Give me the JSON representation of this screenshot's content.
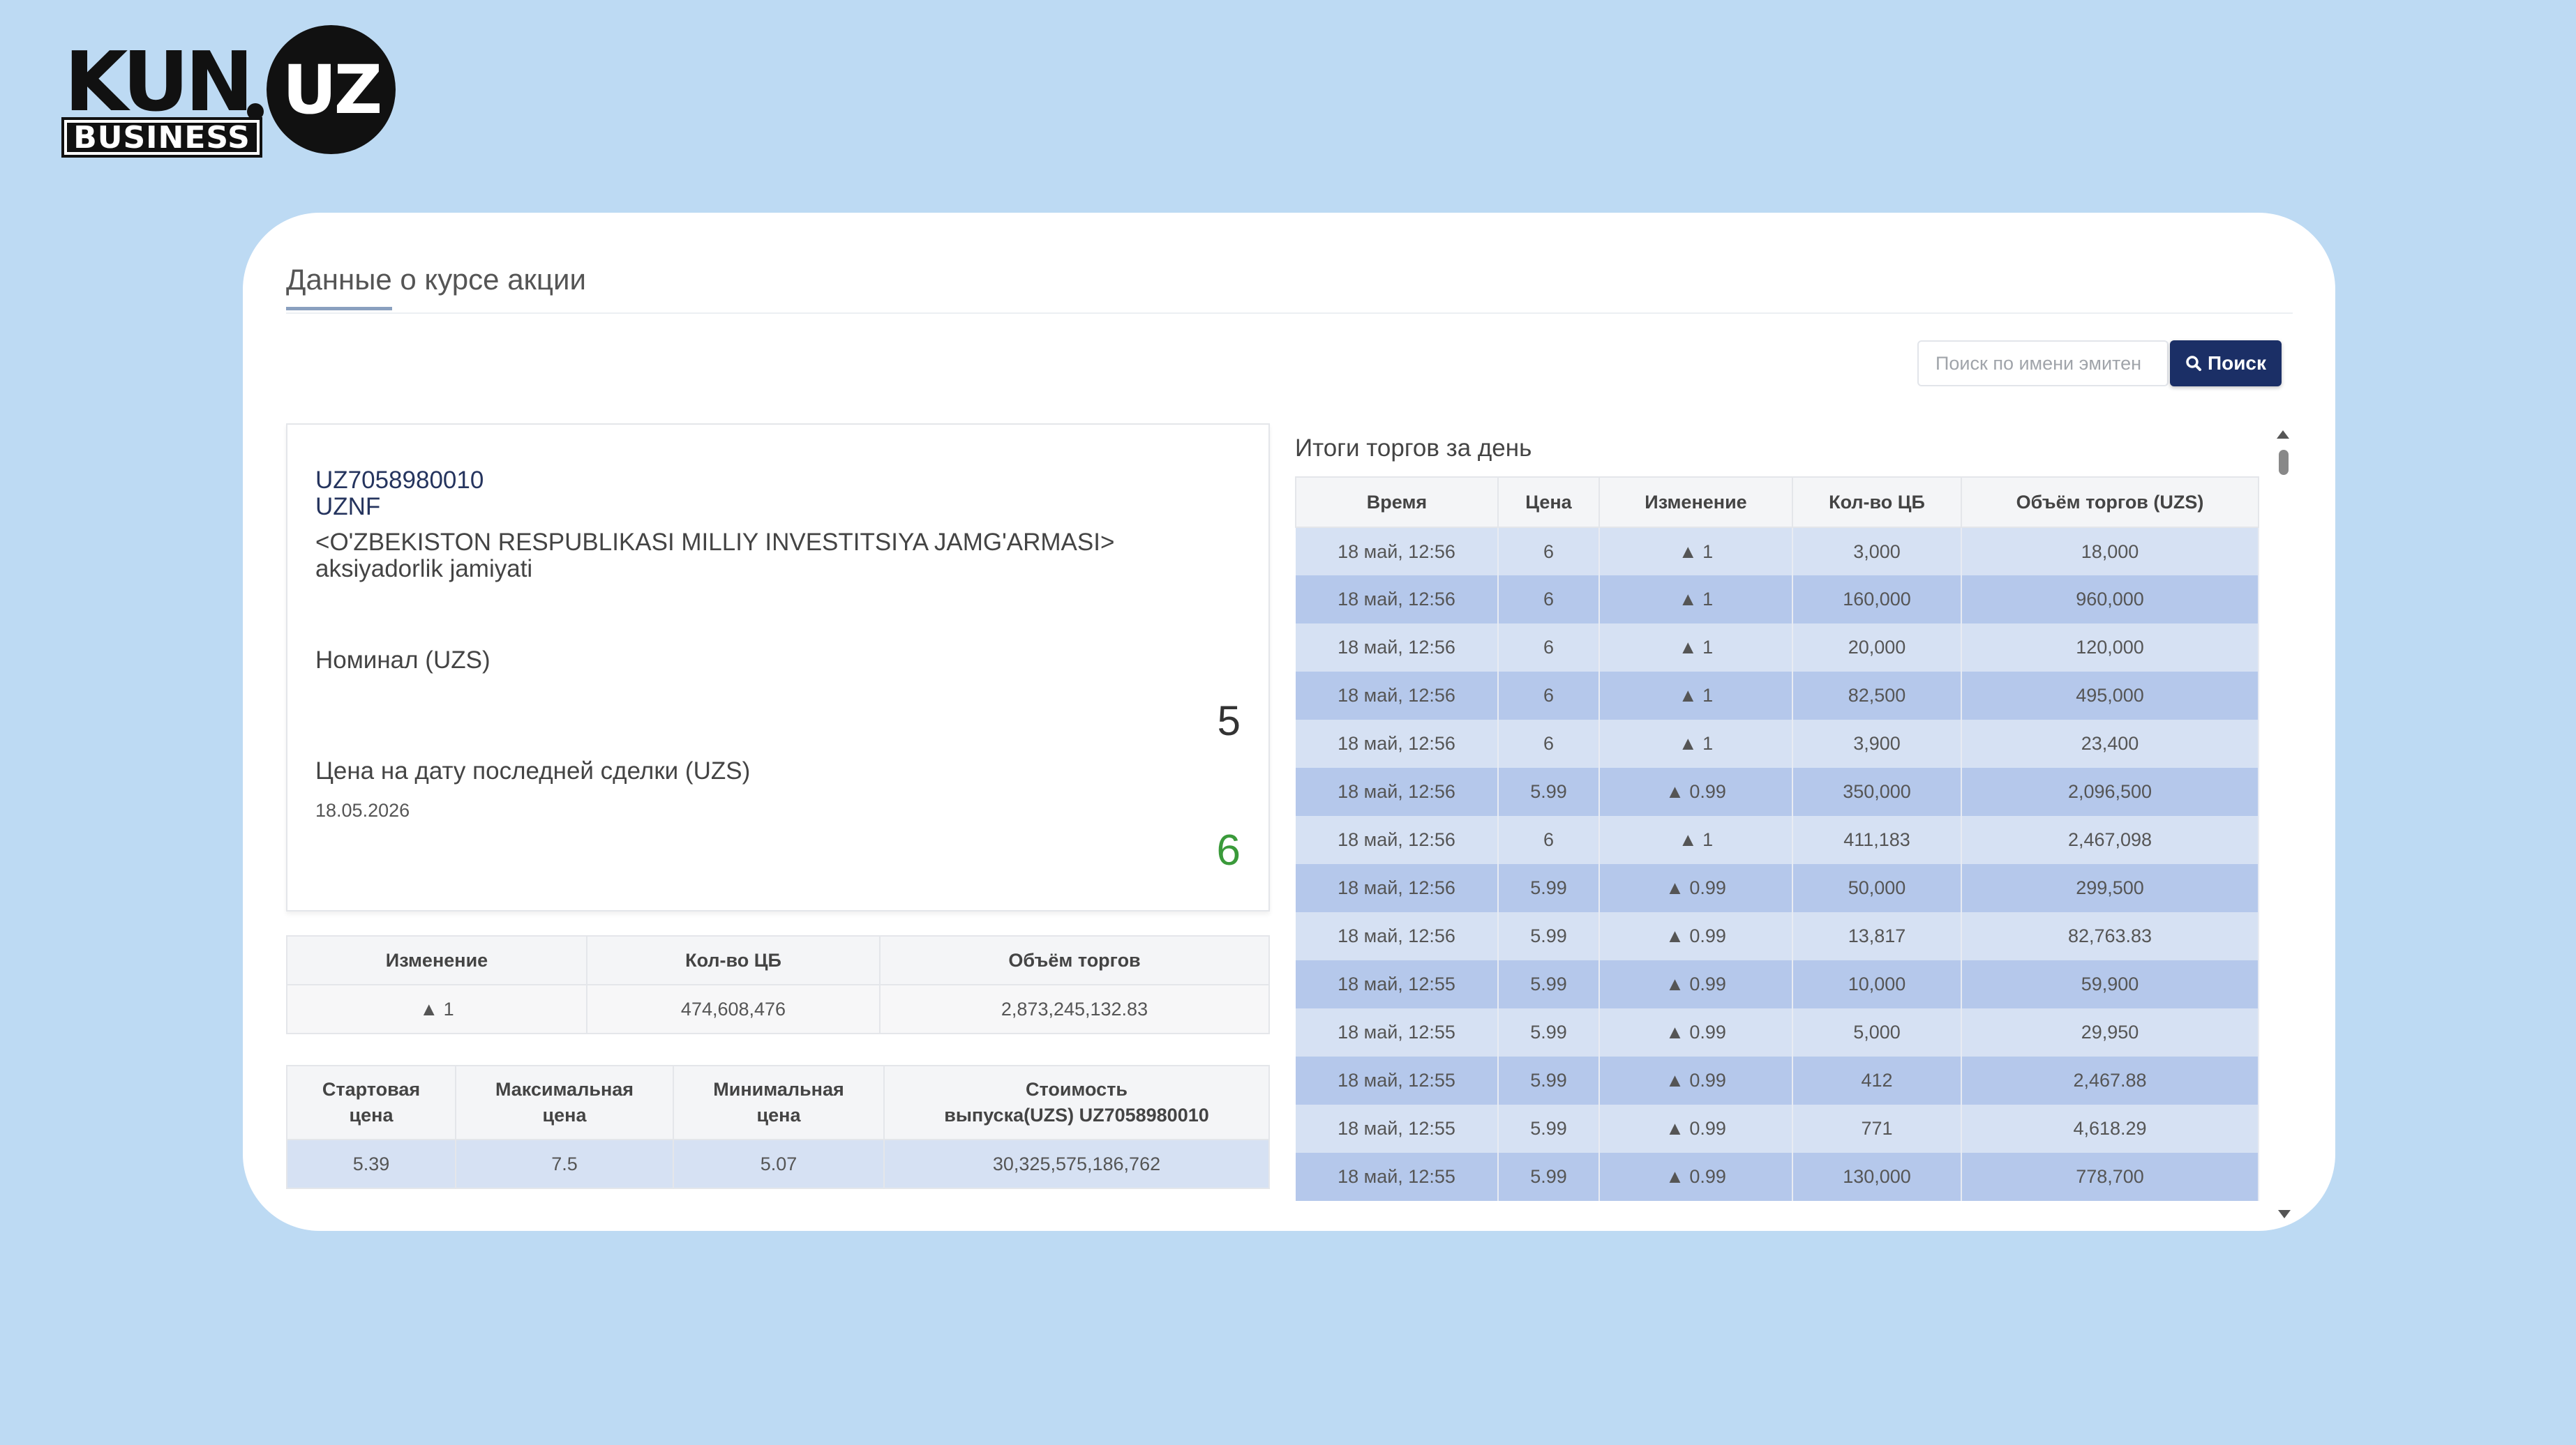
{
  "logo": {
    "kun": "KUN",
    "uz": "UZ",
    "business": "BUSINESS"
  },
  "header": {
    "title": "Данные о курсе акции"
  },
  "search": {
    "placeholder": "Поиск по имени эмитен",
    "button_label": "Поиск"
  },
  "info": {
    "isin": "UZ7058980010",
    "ticker": "UZNF",
    "company": "<O'ZBEKISTON RESPUBLIKASI MILLIY INVESTITSIYA JAMG'ARMASI> aksiyadorlik jamiyati",
    "nominal_label": "Номинал (UZS)",
    "nominal_value": "5",
    "price_label": "Цена на дату последней сделки (UZS)",
    "price_date": "18.05.2026",
    "price_value": "6"
  },
  "summary": {
    "headers": [
      "Изменение",
      "Кол-во ЦБ",
      "Объём торгов"
    ],
    "change": "▲ 1",
    "quantity": "474,608,476",
    "volume": "2,873,245,132.83"
  },
  "range": {
    "headers": [
      "Стартовая цена",
      "Максимальная цена",
      "Минимальная цена",
      "Стоимость выпуска(UZS) UZ7058980010"
    ],
    "start": "5.39",
    "max": "7.5",
    "min": "5.07",
    "issue_value": "30,325,575,186,762"
  },
  "trades": {
    "title": "Итоги торгов за день",
    "headers": [
      "Время",
      "Цена",
      "Изменение",
      "Кол-во ЦБ",
      "Объём торгов (UZS)"
    ],
    "rows": [
      [
        "18 май, 12:56",
        "6",
        "▲ 1",
        "3,000",
        "18,000"
      ],
      [
        "18 май, 12:56",
        "6",
        "▲ 1",
        "160,000",
        "960,000"
      ],
      [
        "18 май, 12:56",
        "6",
        "▲ 1",
        "20,000",
        "120,000"
      ],
      [
        "18 май, 12:56",
        "6",
        "▲ 1",
        "82,500",
        "495,000"
      ],
      [
        "18 май, 12:56",
        "6",
        "▲ 1",
        "3,900",
        "23,400"
      ],
      [
        "18 май, 12:56",
        "5.99",
        "▲ 0.99",
        "350,000",
        "2,096,500"
      ],
      [
        "18 май, 12:56",
        "6",
        "▲ 1",
        "411,183",
        "2,467,098"
      ],
      [
        "18 май, 12:56",
        "5.99",
        "▲ 0.99",
        "50,000",
        "299,500"
      ],
      [
        "18 май, 12:56",
        "5.99",
        "▲ 0.99",
        "13,817",
        "82,763.83"
      ],
      [
        "18 май, 12:55",
        "5.99",
        "▲ 0.99",
        "10,000",
        "59,900"
      ],
      [
        "18 май, 12:55",
        "5.99",
        "▲ 0.99",
        "5,000",
        "29,950"
      ],
      [
        "18 май, 12:55",
        "5.99",
        "▲ 0.99",
        "412",
        "2,467.88"
      ],
      [
        "18 май, 12:55",
        "5.99",
        "▲ 0.99",
        "771",
        "4,618.29"
      ],
      [
        "18 май, 12:55",
        "5.99",
        "▲ 0.99",
        "130,000",
        "778,700"
      ]
    ]
  },
  "colors": {
    "background": "#bddaf3",
    "accent": "#1b2f66",
    "up": "#3a9a3a",
    "row_light": "#d6e1f3",
    "row_dark": "#b5c8eb"
  }
}
